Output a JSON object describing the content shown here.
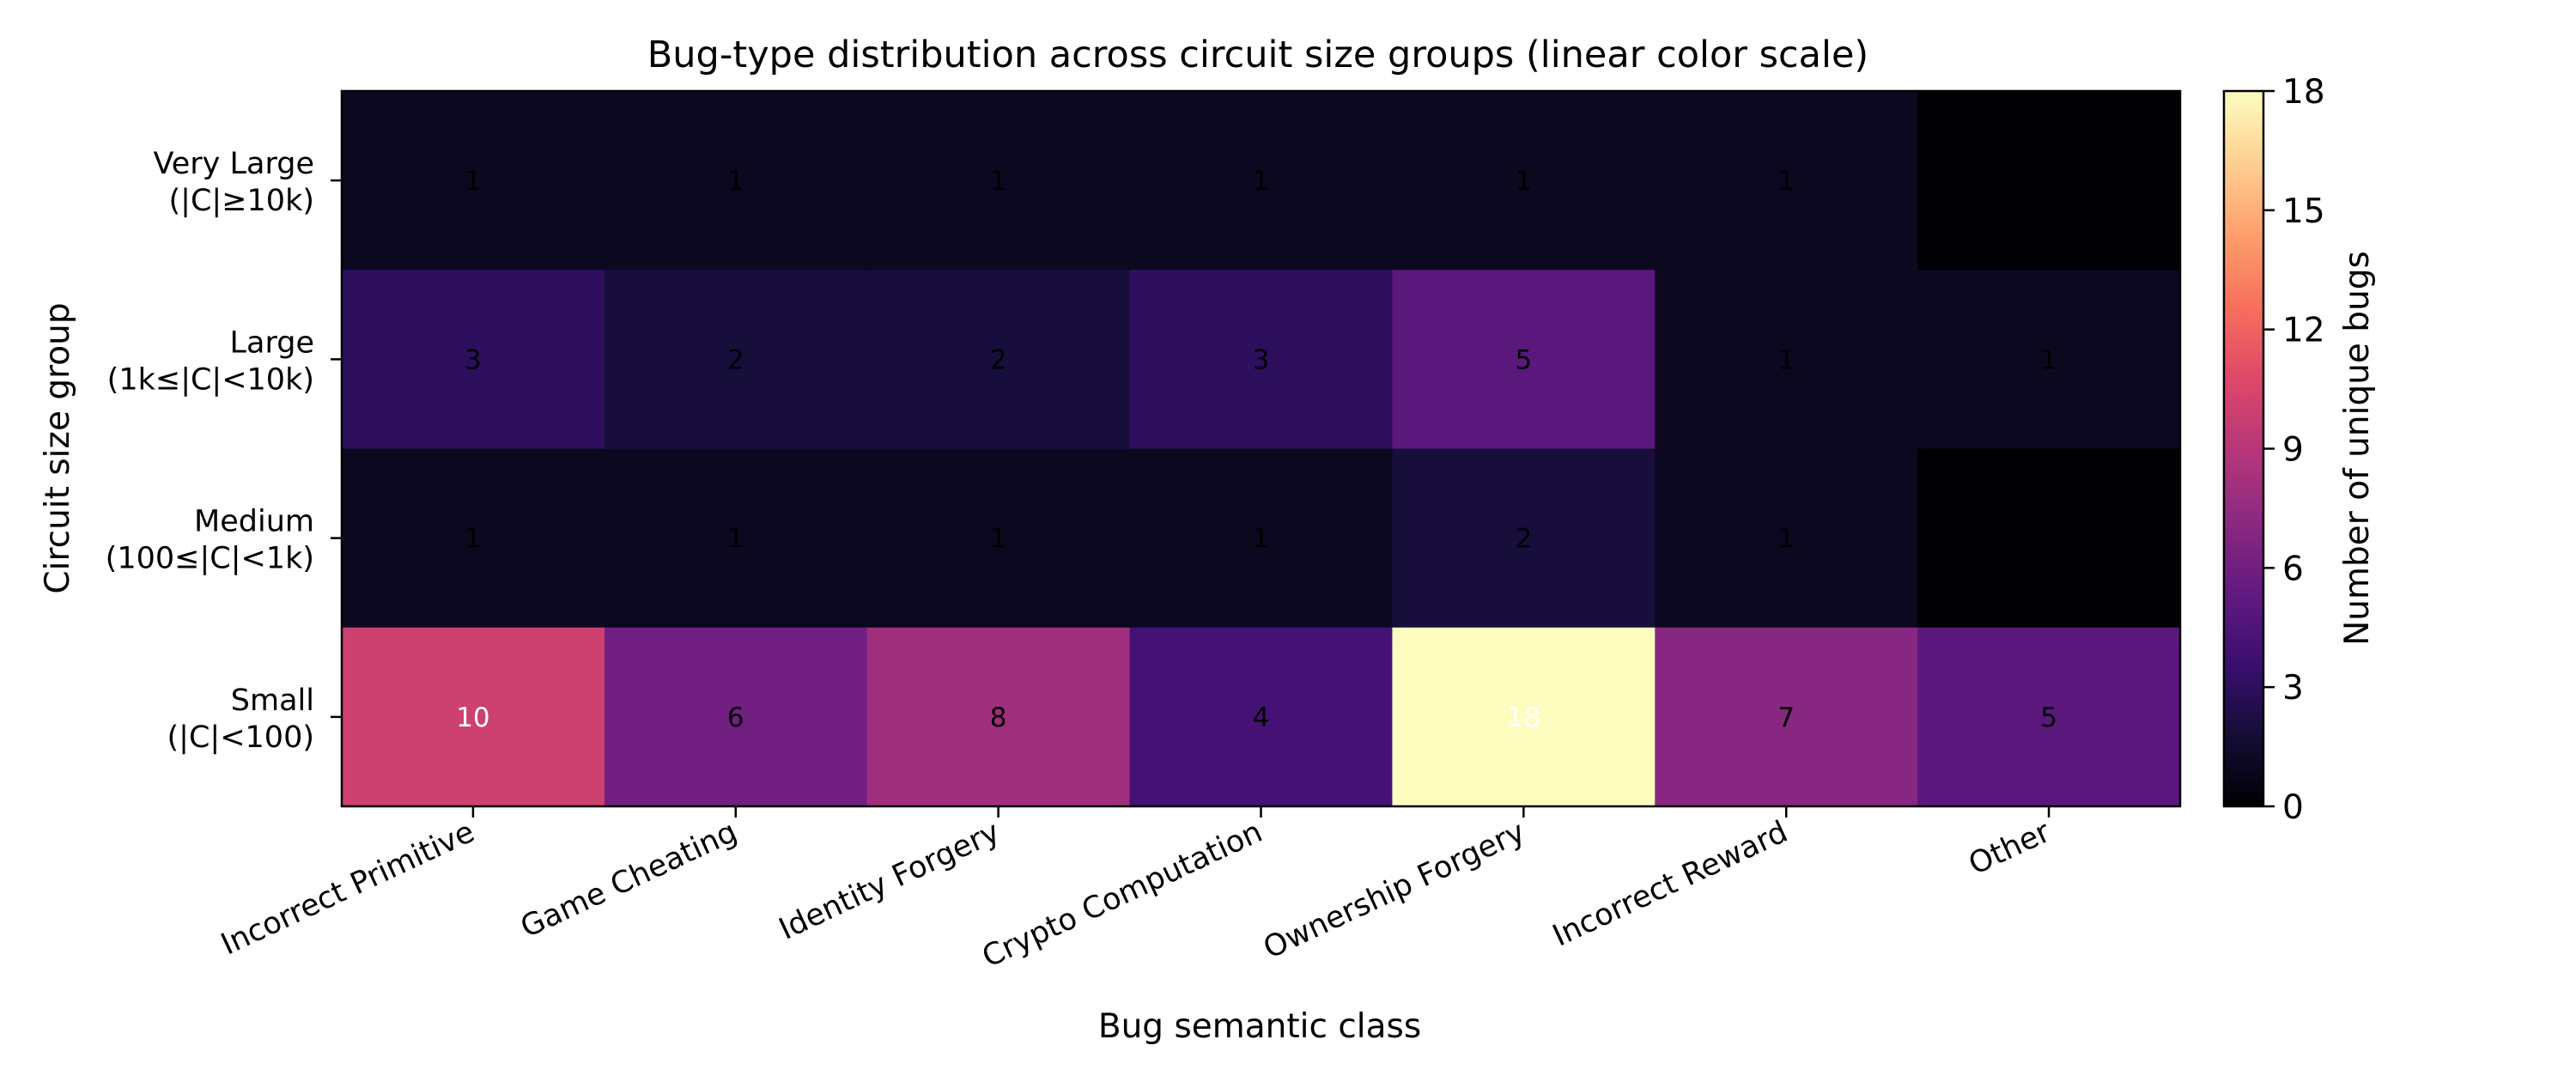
{
  "chart_data": {
    "type": "heatmap",
    "title": "Bug-type distribution across circuit size groups (linear color scale)",
    "xlabel": "Bug semantic class",
    "ylabel": "Circuit size group",
    "x_categories": [
      "Incorrect Primitive",
      "Game Cheating",
      "Identity Forgery",
      "Crypto Computation",
      "Ownership Forgery",
      "Incorrect Reward",
      "Other"
    ],
    "y_categories": [
      [
        "Very Large",
        "(|C|≥10k)"
      ],
      [
        "Large",
        "(1k≤|C|<10k)"
      ],
      [
        "Medium",
        "(100≤|C|<1k)"
      ],
      [
        "Small",
        "(|C|<100)"
      ]
    ],
    "values": [
      [
        1,
        1,
        1,
        1,
        1,
        1,
        0
      ],
      [
        3,
        2,
        2,
        3,
        5,
        1,
        1
      ],
      [
        1,
        1,
        1,
        1,
        2,
        1,
        0
      ],
      [
        10,
        6,
        8,
        4,
        18,
        7,
        5
      ]
    ],
    "show_zero_labels": false,
    "colormap": "magma",
    "color_range": [
      0,
      18
    ],
    "colorbar": {
      "label": "Number of unique bugs",
      "ticks": [
        0,
        3,
        6,
        9,
        12,
        15,
        18
      ],
      "placement": "right"
    },
    "grid": false
  }
}
